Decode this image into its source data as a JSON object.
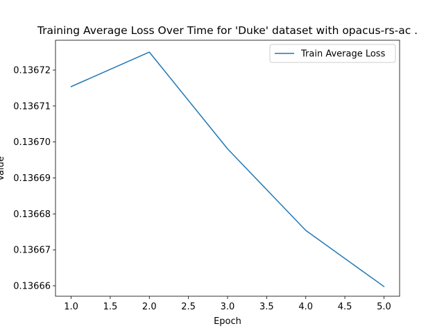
{
  "chart_data": {
    "type": "line",
    "title": "Training Average Loss Over Time for 'Duke' dataset with opacus-rs-ac .",
    "xlabel": "Epoch",
    "ylabel": "Value",
    "x": [
      1.0,
      2.0,
      3.0,
      4.0,
      5.0
    ],
    "series": [
      {
        "name": "Train Average Loss",
        "color": "#1f77b4",
        "values": [
          0.1367154,
          0.136725,
          0.1366981,
          0.1366754,
          0.1366598
        ]
      }
    ],
    "xticks": [
      "1.0",
      "1.5",
      "2.0",
      "2.5",
      "3.0",
      "3.5",
      "4.0",
      "4.5",
      "5.0"
    ],
    "xtick_values": [
      1.0,
      1.5,
      2.0,
      2.5,
      3.0,
      3.5,
      4.0,
      4.5,
      5.0
    ],
    "yticks": [
      "0.13666",
      "0.13667",
      "0.13668",
      "0.13669",
      "0.13670",
      "0.13671",
      "0.13672"
    ],
    "ytick_values": [
      0.13666,
      0.13667,
      0.13668,
      0.13669,
      0.1367,
      0.13671,
      0.13672
    ],
    "xlim": [
      0.8,
      5.2
    ],
    "ylim": [
      0.1366571,
      0.1367283
    ],
    "grid": false,
    "legend_position": "top-right"
  }
}
